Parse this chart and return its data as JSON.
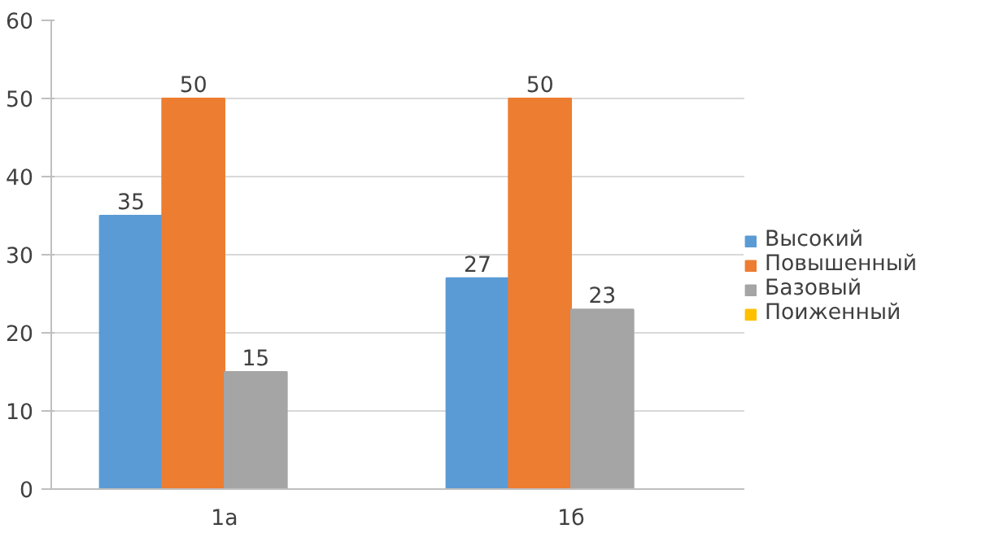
{
  "chart_data": {
    "type": "bar",
    "categories": [
      "1а",
      "1б"
    ],
    "series": [
      {
        "name": "Высокий",
        "color": "#5b9bd5",
        "values": [
          35,
          27
        ]
      },
      {
        "name": "Повышенный",
        "color": "#ed7d31",
        "values": [
          50,
          50
        ]
      },
      {
        "name": "Базовый",
        "color": "#a5a5a5",
        "values": [
          15,
          23
        ]
      },
      {
        "name": "Поиженный",
        "color": "#ffc000",
        "values": [
          null,
          null
        ]
      }
    ],
    "ylim": [
      0,
      60
    ],
    "yticks": [
      0,
      10,
      20,
      30,
      40,
      50,
      60
    ],
    "grid": "y",
    "legend": "right",
    "data_labels": true
  }
}
